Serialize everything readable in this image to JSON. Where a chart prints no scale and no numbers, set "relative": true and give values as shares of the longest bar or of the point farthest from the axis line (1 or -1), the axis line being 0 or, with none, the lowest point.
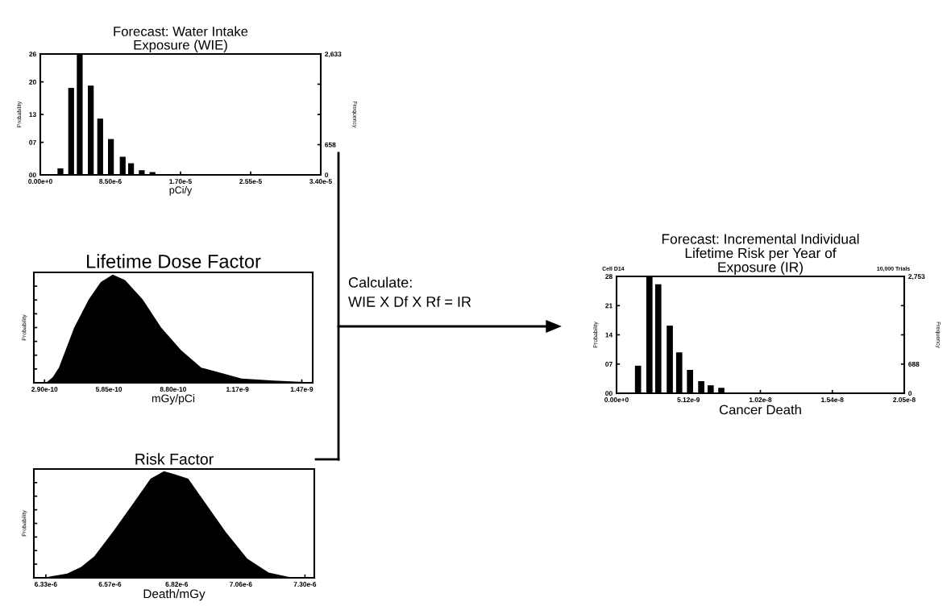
{
  "chart_data": [
    {
      "type": "bar",
      "title": "Forecast: Water Intake\nExposure (WIE)",
      "xlabel": "pCi/y",
      "ylabel": "Probability",
      "y2label": "Frequency",
      "x": [
        2.44e-06,
        3.74e-06,
        4.78e-06,
        6.12e-06,
        7.26e-06,
        8.56e-06,
        9.99e-06,
        1.1e-05,
        1.23e-05,
        1.36e-05
      ],
      "series": [
        {
          "color": "#000000",
          "values": [
            1.4,
            18.7,
            26,
            19.2,
            12.1,
            7.7,
            3.9,
            2.5,
            1.0,
            0.6
          ]
        }
      ],
      "xlim": [
        0,
        3.4e-05
      ],
      "xticks": [
        {
          "value": 0,
          "label": "0.00e+0"
        },
        {
          "value": 8.5e-06,
          "label": "8.50e-6"
        },
        {
          "value": 1.7e-05,
          "label": "1.70e-5"
        },
        {
          "value": 2.55e-05,
          "label": "2.55e-5"
        },
        {
          "value": 3.4e-05,
          "label": "3.40e-5"
        }
      ],
      "ylim": [
        0,
        26
      ],
      "yticks": [
        {
          "value": 0,
          "label": "00"
        },
        {
          "value": 7,
          "label": "07"
        },
        {
          "value": 13,
          "label": "13"
        },
        {
          "value": 20,
          "label": "20"
        },
        {
          "value": 26,
          "label": "26"
        }
      ],
      "y2lim": [
        0,
        2633
      ],
      "y2ticks": [
        {
          "value": 0,
          "label": "0"
        },
        {
          "value": 658,
          "label": "658"
        },
        {
          "value": 1316,
          "label": null
        },
        {
          "value": 1975,
          "label": null
        },
        {
          "value": 2633,
          "label": "2,633"
        }
      ]
    },
    {
      "type": "area",
      "title": "Lifetime Dose Factor",
      "xlabel": "mGy/pCi",
      "ylabel": "Probability",
      "relative": true,
      "tick_labels": "x",
      "x": [
        2.97e-10,
        3.27e-10,
        3.56e-10,
        4.26e-10,
        4.93e-10,
        5.48e-10,
        6.03e-10,
        6.59e-10,
        7.4e-10,
        8.25e-10,
        9.17e-10,
        1.009e-09,
        1.12e-09,
        1.193e-09,
        1.341e-09,
        1.499e-09
      ],
      "series": [
        {
          "color": "#000000",
          "values": [
            0,
            0.05,
            0.14,
            0.51,
            0.77,
            0.93,
            1.0,
            0.95,
            0.77,
            0.51,
            0.3,
            0.14,
            0.08,
            0.04,
            0.02,
            0.005
          ]
        }
      ],
      "xlim": [
        2.41e-10,
        1.52e-09
      ],
      "xticks": [
        {
          "value": 2.9e-10,
          "label": "2.90e-10"
        },
        {
          "value": 5.85e-10,
          "label": "5.85e-10"
        },
        {
          "value": 8.8e-10,
          "label": "8.80e-10"
        },
        {
          "value": 1.175e-09,
          "label": "1.17e-9"
        },
        {
          "value": 1.47e-09,
          "label": "1.47e-9"
        }
      ]
    },
    {
      "type": "area",
      "title": "Risk Factor",
      "xlabel": "Death/mGy",
      "ylabel": "Probability",
      "relative": true,
      "tick_labels": "x",
      "x": [
        6.33e-06,
        6.41e-06,
        6.461e-06,
        6.511e-06,
        6.581e-06,
        6.652e-06,
        6.722e-06,
        6.772e-06,
        6.812e-06,
        6.863e-06,
        6.933e-06,
        7.003e-06,
        7.084e-06,
        7.164e-06,
        7.244e-06
      ],
      "series": [
        {
          "color": "#000000",
          "values": [
            0.005,
            0.04,
            0.1,
            0.2,
            0.43,
            0.68,
            0.93,
            1.0,
            0.97,
            0.93,
            0.68,
            0.43,
            0.18,
            0.05,
            0.005
          ]
        }
      ],
      "xlim": [
        6.285e-06,
        7.335e-06
      ],
      "xticks": [
        {
          "value": 6.33e-06,
          "label": "6.33e-6"
        },
        {
          "value": 6.57e-06,
          "label": "6.57e-6"
        },
        {
          "value": 6.82e-06,
          "label": "6.82e-6"
        },
        {
          "value": 7.06e-06,
          "label": "7.06e-6"
        },
        {
          "value": 7.3e-06,
          "label": "7.30e-6"
        }
      ]
    },
    {
      "type": "bar",
      "title": "Forecast: Incremental Individual\nLifetime Risk per Year of\nExposure (IR)",
      "xlabel": "Cancer Death",
      "ylabel": "Probability",
      "y2label": "Frequency",
      "annotations": [
        "Cell D14",
        "10,000 Trials"
      ],
      "x": [
        1.53e-09,
        2.34e-09,
        2.97e-09,
        3.79e-09,
        4.46e-09,
        5.23e-09,
        6.03e-09,
        6.7e-09,
        7.46e-09
      ],
      "series": [
        {
          "color": "#000000",
          "values": [
            6.6,
            28,
            26.1,
            16.2,
            9.8,
            5.6,
            2.9,
            1.9,
            1.3
          ]
        }
      ],
      "xlim": [
        0,
        2.048e-08
      ],
      "xticks": [
        {
          "value": 0,
          "label": "0.00e+0"
        },
        {
          "value": 5.12e-09,
          "label": "5.12e-9"
        },
        {
          "value": 1.024e-08,
          "label": "1.02e-8"
        },
        {
          "value": 1.536e-08,
          "label": "1.54e-8"
        },
        {
          "value": 2.048e-08,
          "label": "2.05e-8"
        }
      ],
      "ylim": [
        0,
        28
      ],
      "yticks": [
        {
          "value": 0,
          "label": "00"
        },
        {
          "value": 7,
          "label": "07"
        },
        {
          "value": 14,
          "label": "14"
        },
        {
          "value": 21,
          "label": "21"
        },
        {
          "value": 28,
          "label": "28"
        }
      ],
      "y2lim": [
        0,
        2753
      ],
      "y2ticks": [
        {
          "value": 0,
          "label": "0"
        },
        {
          "value": 688,
          "label": "688"
        },
        {
          "value": 1376,
          "label": null
        },
        {
          "value": 2065,
          "label": null
        },
        {
          "value": 2753,
          "label": "2,753"
        }
      ]
    },
    {
      "type": "other",
      "annotations": [
        "Calculate:",
        "WIE X Df X Rf = IR"
      ]
    }
  ]
}
